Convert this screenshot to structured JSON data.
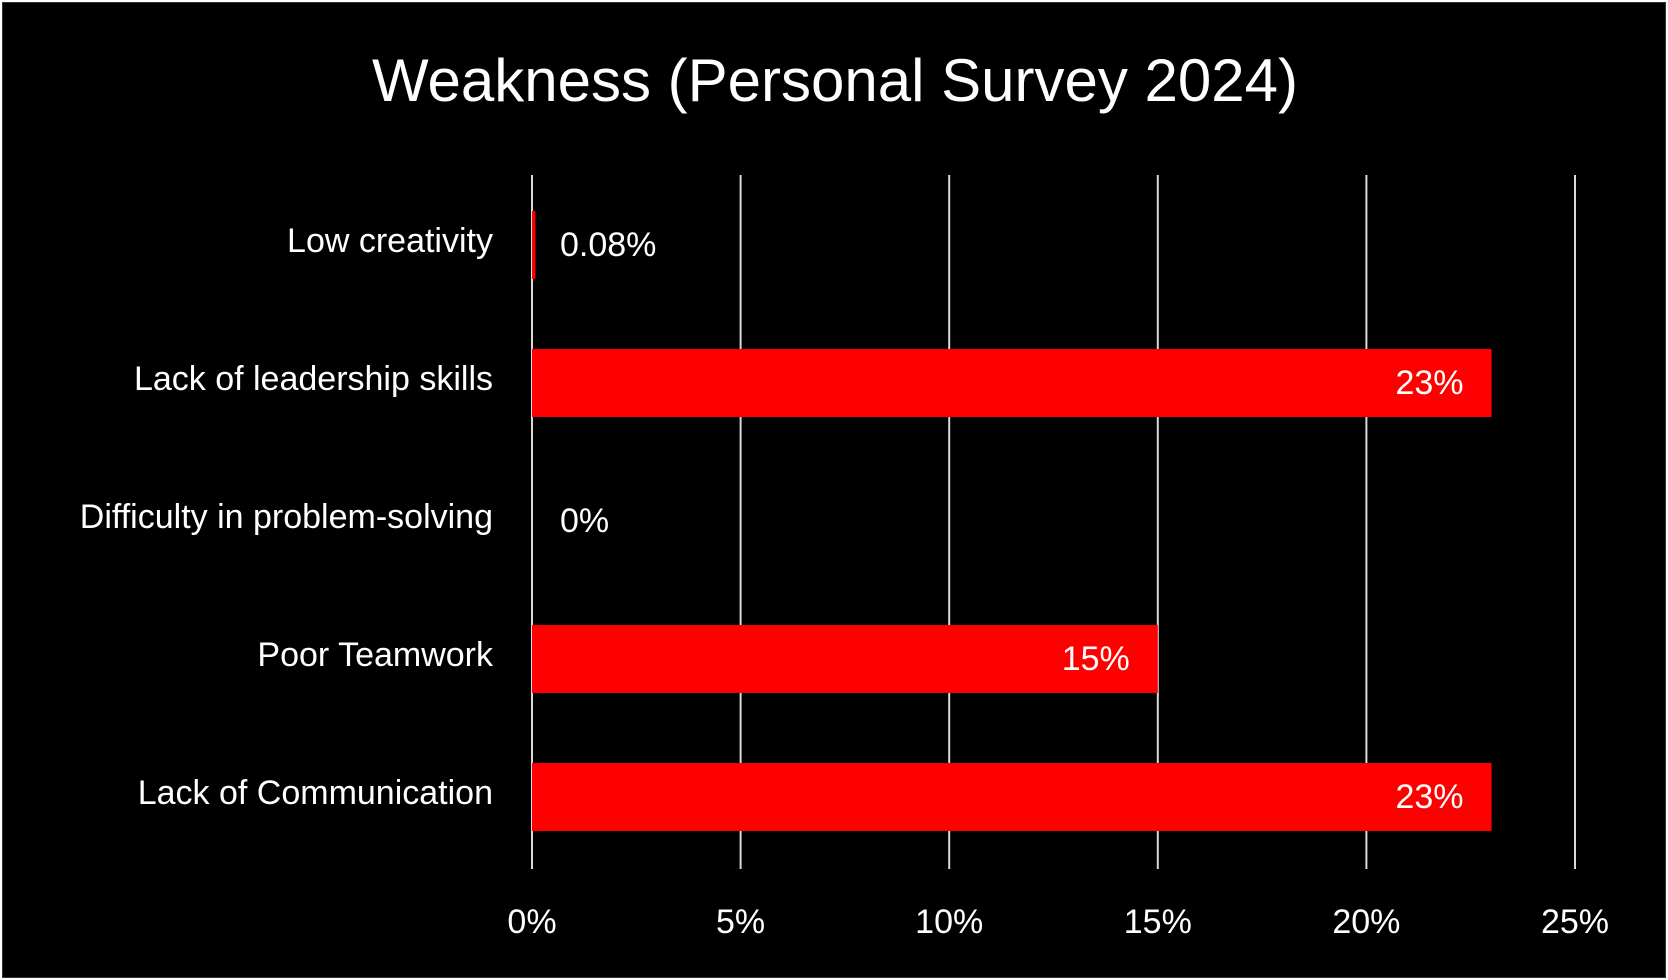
{
  "chart_data": {
    "type": "bar",
    "orientation": "horizontal",
    "title": "Weakness (Personal Survey 2024)",
    "categories": [
      "Low creativity",
      "Lack of leadership skills",
      "Difficulty in problem-solving",
      "Poor Teamwork",
      "Lack of Communication"
    ],
    "values": [
      0.08,
      23,
      0,
      15,
      23
    ],
    "data_labels": [
      "0.08%",
      "23%",
      "0%",
      "15%",
      "23%"
    ],
    "xlim": [
      0,
      25
    ],
    "x_ticks": [
      0,
      5,
      10,
      15,
      20,
      25
    ],
    "x_tick_labels": [
      "0%",
      "5%",
      "10%",
      "15%",
      "20%",
      "25%"
    ],
    "xlabel": "",
    "ylabel": "",
    "grid": "vertical",
    "legend": "none",
    "colors": {
      "background": "#000000",
      "bar": "#ff0000",
      "gridline": "#d9d9d9",
      "text": "#ffffff"
    }
  }
}
